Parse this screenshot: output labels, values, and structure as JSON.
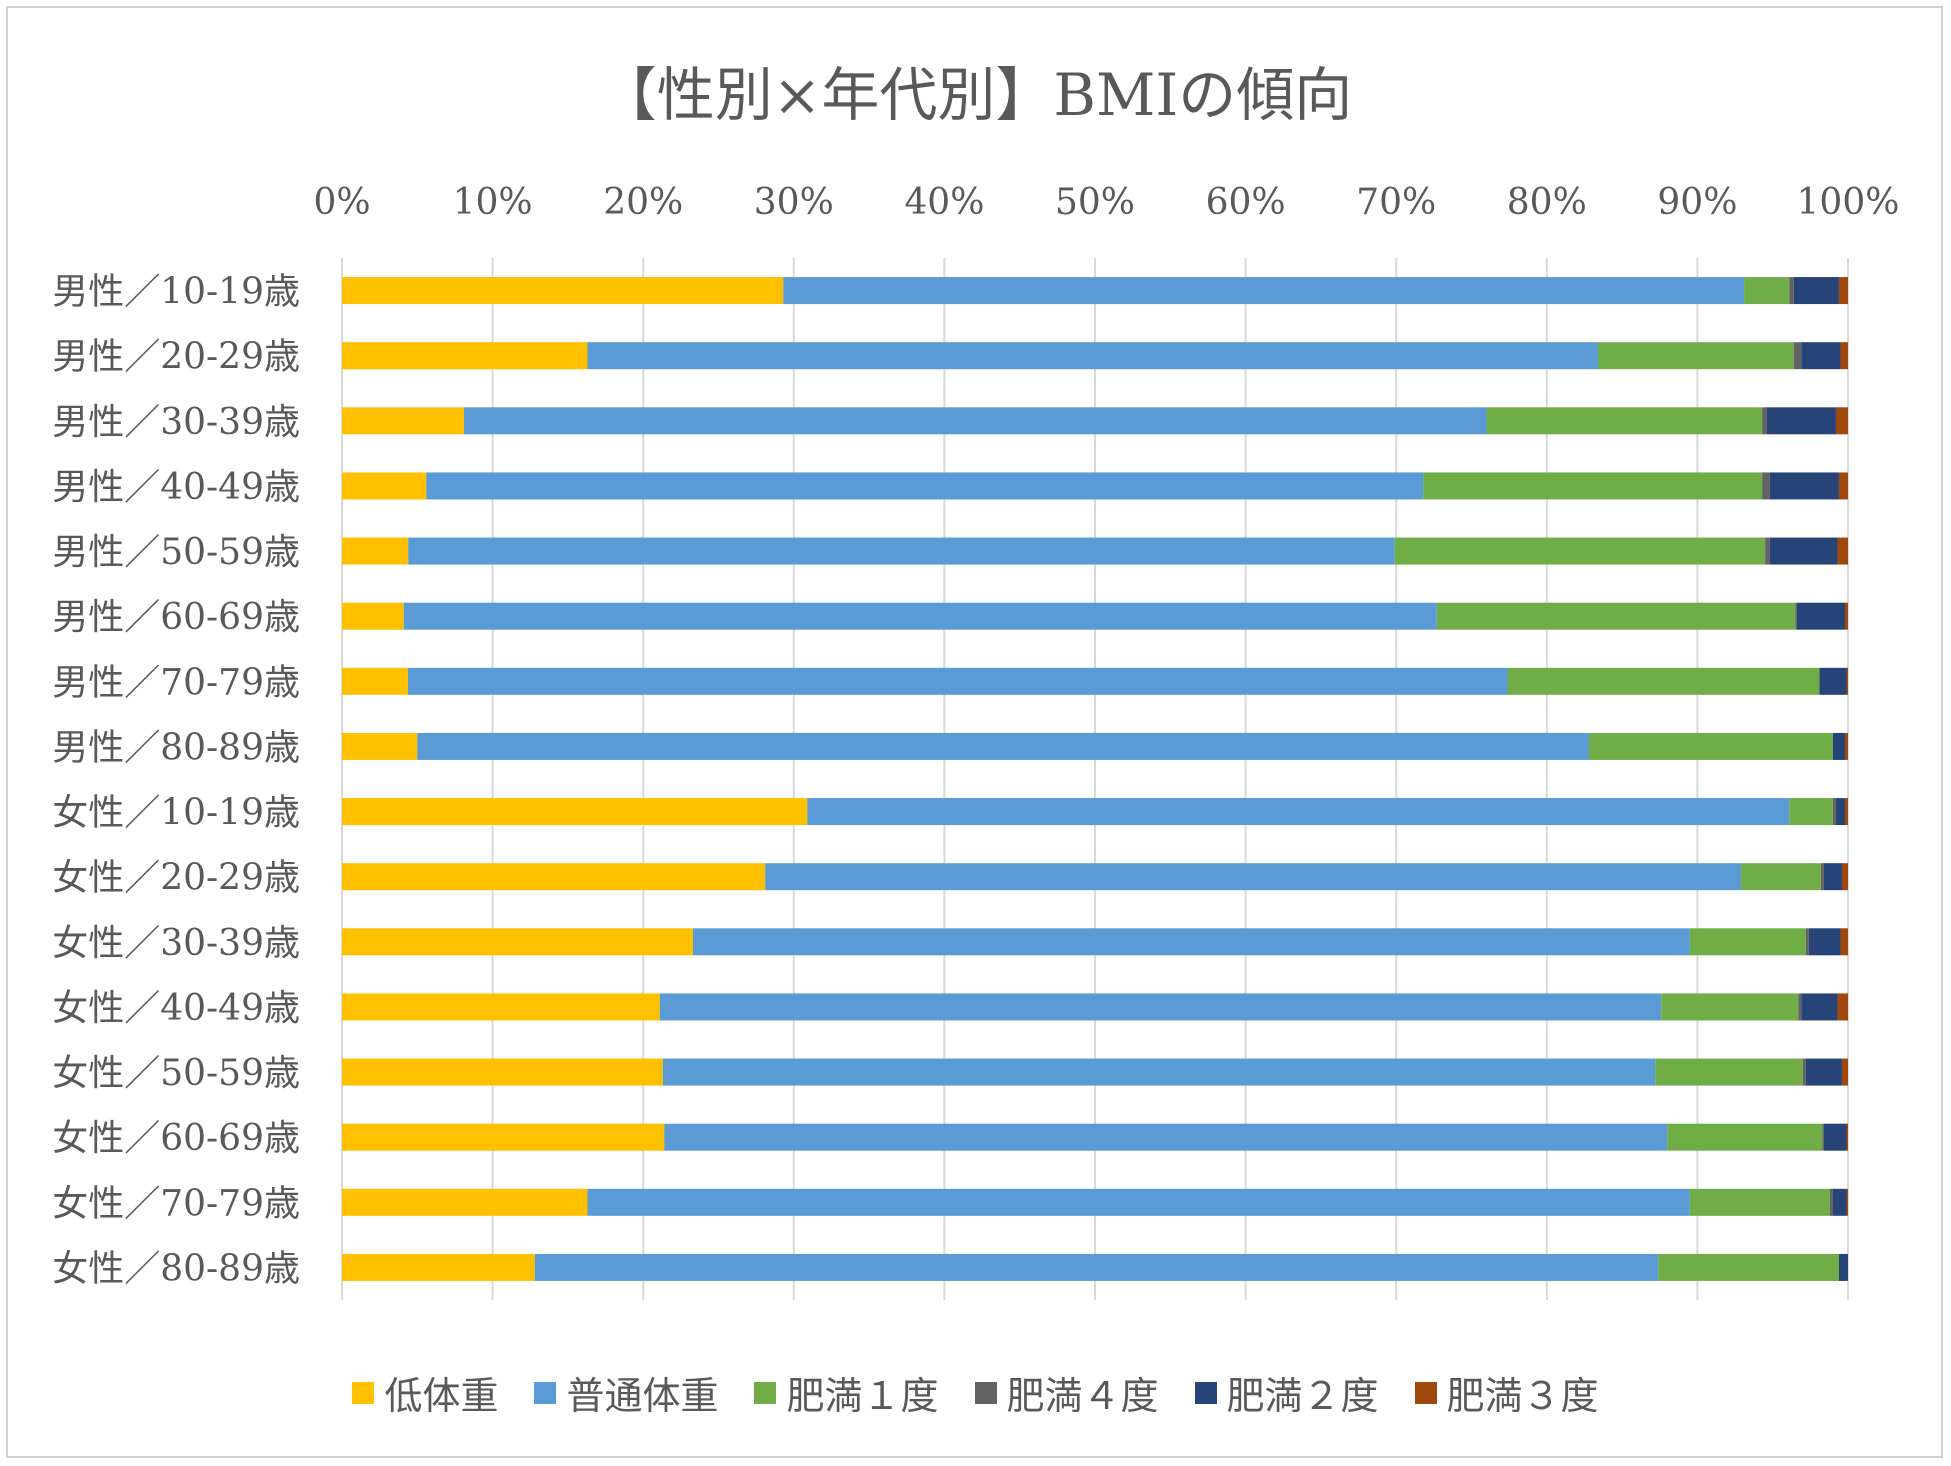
{
  "chart_data": {
    "type": "bar",
    "orientation": "horizontal",
    "stacked": "percent",
    "title": "【性別×年代別】BMIの傾向",
    "xlabel": "",
    "ylabel": "",
    "xlim": [
      0,
      100
    ],
    "x_ticks": [
      "0%",
      "10%",
      "20%",
      "30%",
      "40%",
      "50%",
      "60%",
      "70%",
      "80%",
      "90%",
      "100%"
    ],
    "grid": true,
    "legend_position": "bottom",
    "categories": [
      "男性／10-19歳",
      "男性／20-29歳",
      "男性／30-39歳",
      "男性／40-49歳",
      "男性／50-59歳",
      "男性／60-69歳",
      "男性／70-79歳",
      "男性／80-89歳",
      "女性／10-19歳",
      "女性／20-29歳",
      "女性／30-39歳",
      "女性／40-49歳",
      "女性／50-59歳",
      "女性／60-69歳",
      "女性／70-79歳",
      "女性／80-89歳"
    ],
    "series": [
      {
        "name": "低体重",
        "color": "#FFC000",
        "values": [
          29.3,
          16.3,
          8.1,
          5.6,
          4.4,
          4.1,
          4.4,
          5.0,
          30.9,
          28.1,
          23.3,
          21.1,
          21.3,
          21.4,
          16.3,
          12.8
        ]
      },
      {
        "name": "普通体重",
        "color": "#5B9BD5",
        "values": [
          63.8,
          67.1,
          67.9,
          66.2,
          65.5,
          68.6,
          73.3,
          77.8,
          65.2,
          64.8,
          66.2,
          66.5,
          65.9,
          66.6,
          73.2,
          74.6
        ]
      },
      {
        "name": "肥満１度",
        "color": "#70AD47",
        "values": [
          3.0,
          13.0,
          18.3,
          22.5,
          24.6,
          23.8,
          20.8,
          16.2,
          2.9,
          5.3,
          7.7,
          9.1,
          9.8,
          10.3,
          9.3,
          12.0
        ]
      },
      {
        "name": "肥満４度",
        "color": "#636363",
        "values": [
          0.3,
          0.5,
          0.3,
          0.5,
          0.3,
          0.1,
          0.0,
          0.0,
          0.2,
          0.2,
          0.2,
          0.2,
          0.2,
          0.1,
          0.2,
          0.0
        ]
      },
      {
        "name": "肥満２度",
        "color": "#264478",
        "values": [
          3.0,
          2.6,
          4.6,
          4.6,
          4.5,
          3.2,
          1.8,
          0.8,
          0.6,
          1.2,
          2.1,
          2.4,
          2.4,
          1.5,
          0.9,
          0.6
        ]
      },
      {
        "name": "肥満３度",
        "color": "#9E480E",
        "values": [
          0.6,
          0.5,
          0.8,
          0.6,
          0.7,
          0.2,
          0.1,
          0.2,
          0.2,
          0.4,
          0.5,
          0.7,
          0.4,
          0.1,
          0.1,
          0.0
        ]
      }
    ]
  }
}
